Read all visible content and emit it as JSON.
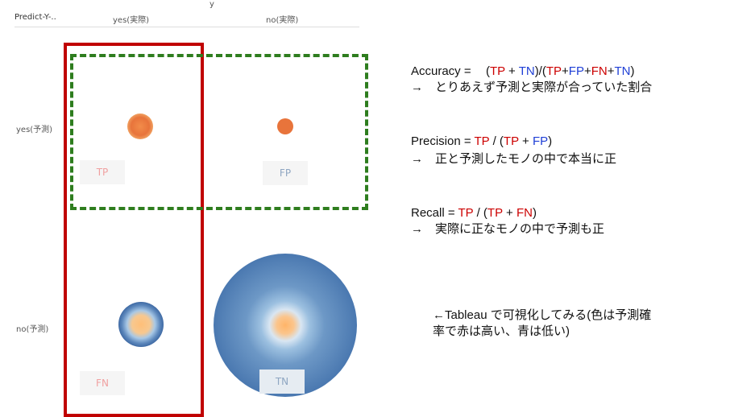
{
  "matrix": {
    "column_axis_title": "y",
    "row_axis_title": "Predict-Y-..",
    "columns": [
      "yes(実際)",
      "no(実際)"
    ],
    "rows": [
      "yes(予測)",
      "no(予測)"
    ],
    "cells": {
      "tp": "TP",
      "fp": "FP",
      "fn": "FN",
      "tn": "TN"
    },
    "colors": {
      "actual_yes_box": "#c00000",
      "predicted_yes_box": "#2e7d1e",
      "bubble_high": "#e8743b",
      "bubble_low": "#4a78b0"
    }
  },
  "formulas": {
    "accuracy": {
      "name": "Accuracy = ",
      "open": "(",
      "tp": "TP",
      "plus1": " + ",
      "tn": "TN",
      "mid": ")/(",
      "tp2": "TP",
      "p2": "+",
      "fp": "FP",
      "p3": "+",
      "fn": "FN",
      "p4": "+",
      "tn2": "TN",
      "close": ")",
      "note": "→　とりあえず予測と実際が合っていた割合"
    },
    "precision": {
      "name": "Precision = ",
      "tp": "TP",
      "div": " / (",
      "tp2": "TP",
      "plus": " + ",
      "fp": "FP",
      "close": ")",
      "note": "→　正と予測したモノの中で本当に正"
    },
    "recall": {
      "name": "Recall = ",
      "tp": "TP",
      "div": " / (",
      "tp2": "TP",
      "plus": " + ",
      "fn": "FN",
      "close": ")",
      "note": "→　実際に正なモノの中で予測も正"
    },
    "tableau_note_1": "←Tableau で可視化してみる(色は予測確",
    "tableau_note_2": "率で赤は高い、青は低い)"
  }
}
